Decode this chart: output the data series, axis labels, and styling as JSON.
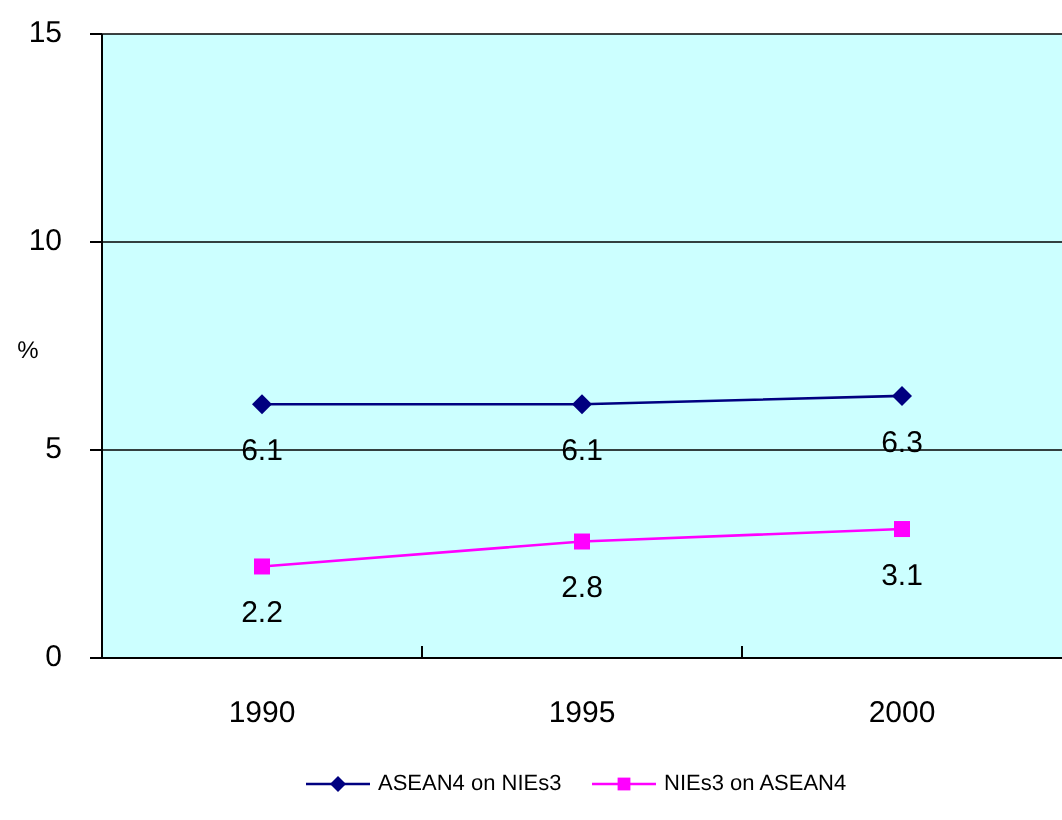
{
  "chart_data": {
    "type": "line",
    "categories": [
      "1990",
      "1995",
      "2000"
    ],
    "series": [
      {
        "name": "ASEAN4 on NIEs3",
        "color": "#000080",
        "values": [
          6.1,
          6.1,
          6.3
        ],
        "marker": "diamond"
      },
      {
        "name": "NIEs3 on ASEAN4",
        "color": "#ff00ff",
        "values": [
          2.2,
          2.8,
          3.1
        ],
        "marker": "square"
      }
    ],
    "ylabel": "%",
    "ylim": [
      0,
      15
    ],
    "yticks": [
      0,
      5,
      10,
      15
    ],
    "grid": "y",
    "legend": "bottom",
    "data_labels": true
  }
}
